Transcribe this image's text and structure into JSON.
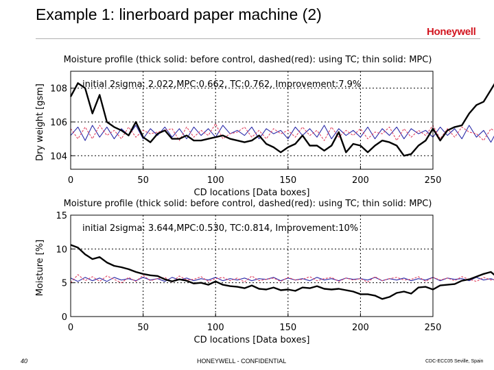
{
  "slide": {
    "title": "Example 1: linerboard paper machine (2)",
    "logo": "Honeywell",
    "page_number": "40",
    "confidential": "HONEYWELL - CONFIDENTIAL",
    "event": "CDC-ECC05 Seville, Spain"
  },
  "colors": {
    "logo": "#d2141e",
    "before_control": "#000000",
    "tc": "#e0405e",
    "mpc": "#2a2aa8"
  },
  "chart_data": [
    {
      "type": "line",
      "title": "Moisture profile (thick solid: before control, dashed(red): using TC; thin solid: MPC)",
      "xlabel": "CD locations [Data boxes]",
      "ylabel": "Dry weight [gsm]",
      "annotation": "initial 2sigma: 2.022,MPC:0.662, TC:0.762, Improvement:7.9%",
      "xlim": [
        0,
        250
      ],
      "ylim": [
        103.2,
        109.0
      ],
      "xticks": [
        0,
        50,
        100,
        150,
        200,
        250
      ],
      "yticks": [
        104,
        106,
        108
      ],
      "grid": true,
      "x_step": 5,
      "series": [
        {
          "key": "before",
          "style": "thick solid",
          "values": [
            107.5,
            108.3,
            108.0,
            106.5,
            107.6,
            106.0,
            105.7,
            105.5,
            105.2,
            106.0,
            105.1,
            104.8,
            105.3,
            105.5,
            105.0,
            105.0,
            105.2,
            104.9,
            104.9,
            105.0,
            105.1,
            105.2,
            105.0,
            104.9,
            104.8,
            104.9,
            105.2,
            104.7,
            104.5,
            104.2,
            104.5,
            104.7,
            105.2,
            104.6,
            104.6,
            104.3,
            104.6,
            105.4,
            104.2,
            104.7,
            104.6,
            104.2,
            104.6,
            104.9,
            104.8,
            104.6,
            104.0,
            104.1,
            104.6,
            104.9,
            105.6,
            104.9,
            105.5,
            105.7,
            105.8,
            106.5,
            107.0,
            107.2,
            107.9,
            108.6,
            109.0
          ]
        },
        {
          "key": "tc",
          "style": "dashed",
          "values": [
            105.6,
            105.0,
            105.7,
            105.0,
            105.8,
            105.2,
            105.5,
            105.0,
            105.7,
            105.1,
            105.5,
            105.3,
            105.4,
            105.5,
            105.6,
            104.9,
            105.7,
            105.1,
            105.5,
            105.2,
            105.9,
            105.0,
            105.3,
            105.4,
            105.7,
            105.1,
            105.5,
            105.0,
            105.6,
            105.3,
            105.5,
            105.1,
            105.7,
            105.2,
            105.5,
            104.9,
            105.7,
            105.1,
            105.5,
            105.2,
            105.6,
            105.0,
            105.4,
            105.3,
            105.7,
            104.9,
            105.6,
            105.1,
            105.5,
            105.2,
            105.8,
            105.0,
            105.6,
            105.1,
            105.7,
            105.4,
            105.3,
            104.9,
            105.6,
            105.3,
            106.1
          ]
        },
        {
          "key": "mpc",
          "style": "thin solid",
          "values": [
            105.2,
            105.7,
            104.9,
            105.8,
            105.1,
            105.7,
            105.0,
            105.6,
            105.2,
            105.8,
            105.0,
            105.6,
            105.2,
            105.7,
            105.1,
            105.6,
            105.0,
            105.7,
            105.2,
            105.6,
            105.1,
            105.8,
            105.3,
            105.5,
            105.2,
            105.7,
            105.0,
            105.6,
            105.3,
            105.5,
            105.0,
            105.7,
            105.2,
            105.6,
            105.1,
            105.8,
            105.0,
            105.6,
            105.2,
            105.5,
            105.1,
            105.7,
            105.0,
            105.6,
            105.2,
            105.7,
            105.0,
            105.6,
            105.3,
            105.5,
            105.1,
            105.7,
            105.2,
            105.6,
            105.0,
            105.8,
            105.1,
            105.5,
            104.8,
            105.6,
            104.9
          ]
        }
      ]
    },
    {
      "type": "line",
      "title": "Moisture profile (thick solid: before control, dashed(red): using TC; thin solid: MPC)",
      "xlabel": "CD locations [Data boxes]",
      "ylabel": "Moisture [%]",
      "annotation": "initial 2sigma: 3.644,MPC:0.530, TC:0.814, Improvement:10%",
      "xlim": [
        0,
        250
      ],
      "ylim": [
        0,
        15
      ],
      "xticks": [
        0,
        50,
        100,
        150,
        200,
        250
      ],
      "yticks": [
        0,
        5,
        10,
        15
      ],
      "grid": true,
      "x_step": 5,
      "series": [
        {
          "key": "before",
          "style": "thick solid",
          "values": [
            10.6,
            10.2,
            9.2,
            8.5,
            8.8,
            8.0,
            7.5,
            7.3,
            7.0,
            6.6,
            6.3,
            6.1,
            6.0,
            5.5,
            5.2,
            5.5,
            5.3,
            4.9,
            5.0,
            4.7,
            5.2,
            4.7,
            4.5,
            4.4,
            4.2,
            4.6,
            4.1,
            4.0,
            4.3,
            3.9,
            4.0,
            3.8,
            4.3,
            4.2,
            4.5,
            4.1,
            4.0,
            4.1,
            3.9,
            3.7,
            3.3,
            3.3,
            3.1,
            2.6,
            2.9,
            3.5,
            3.7,
            3.4,
            4.3,
            4.4,
            4.0,
            4.6,
            4.7,
            4.8,
            5.3,
            5.5,
            5.9,
            6.3,
            6.6,
            5.7,
            5.4
          ]
        },
        {
          "key": "tc",
          "style": "dashed",
          "values": [
            5.0,
            6.2,
            5.3,
            5.9,
            5.2,
            6.0,
            5.5,
            5.0,
            5.8,
            5.2,
            6.1,
            5.3,
            5.6,
            5.8,
            5.1,
            6.0,
            5.4,
            5.5,
            5.9,
            5.2,
            5.6,
            5.8,
            5.3,
            5.7,
            5.1,
            6.0,
            5.3,
            5.5,
            5.7,
            5.2,
            5.8,
            5.4,
            5.5,
            5.9,
            5.3,
            5.6,
            5.8,
            5.2,
            5.7,
            5.4,
            5.6,
            5.1,
            5.9,
            5.3,
            5.6,
            5.8,
            5.4,
            5.5,
            5.9,
            5.2,
            5.8,
            5.4,
            5.7,
            5.3,
            5.9,
            5.5,
            5.2,
            5.8,
            5.4,
            5.6,
            5.0
          ]
        },
        {
          "key": "mpc",
          "style": "thin solid",
          "values": [
            5.7,
            5.2,
            5.8,
            5.3,
            5.7,
            5.2,
            5.8,
            5.4,
            5.6,
            5.3,
            5.8,
            5.4,
            5.6,
            5.2,
            5.8,
            5.4,
            5.7,
            5.3,
            5.6,
            5.4,
            5.8,
            5.3,
            5.6,
            5.4,
            5.7,
            5.3,
            5.6,
            5.5,
            5.8,
            5.3,
            5.7,
            5.4,
            5.6,
            5.3,
            5.8,
            5.4,
            5.6,
            5.3,
            5.7,
            5.5,
            5.6,
            5.4,
            5.8,
            5.3,
            5.6,
            5.4,
            5.7,
            5.3,
            5.6,
            5.4,
            5.8,
            5.3,
            5.7,
            5.5,
            5.6,
            5.3,
            5.8,
            5.4,
            5.6,
            5.2,
            5.4
          ]
        }
      ]
    }
  ]
}
